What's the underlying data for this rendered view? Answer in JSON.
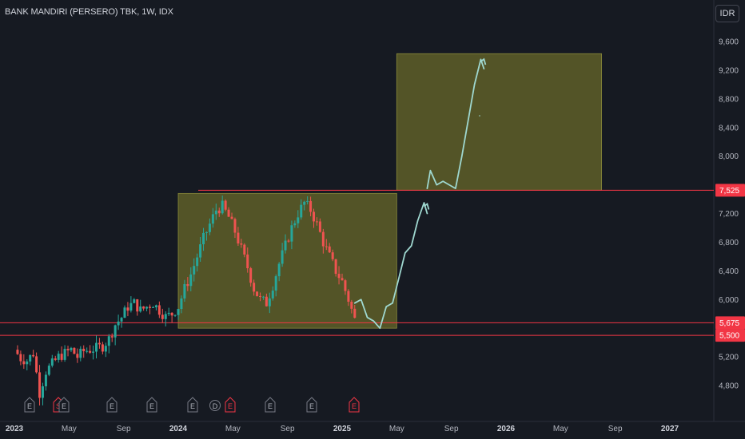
{
  "header": {
    "symbol_title": "BANK MANDIRI (PERSERO) TBK, 1W, IDX",
    "currency_label": "IDR"
  },
  "colors": {
    "background": "#161a22",
    "up_candle": "#26a69a",
    "down_candle": "#ef5350",
    "zone_fill": "#6b6b2a",
    "level_line": "#f23645",
    "projection_line": "#9fd8d0",
    "axis_text": "#b2b5be"
  },
  "chart_data": {
    "type": "candlestick",
    "y_axis": {
      "ticks": [
        9600,
        9200,
        8800,
        8400,
        8000,
        7200,
        6800,
        6400,
        6000,
        5200,
        4800
      ],
      "tick_labels": [
        "9,600",
        "9,200",
        "8,800",
        "8,400",
        "8,000",
        "7,200",
        "6,800",
        "6,400",
        "6,000",
        "5,200",
        "4,800"
      ],
      "range": [
        4650,
        9900
      ]
    },
    "x_axis": {
      "labels": [
        "2023",
        "May",
        "Sep",
        "2024",
        "May",
        "Sep",
        "2025",
        "May",
        "Sep",
        "2026",
        "May",
        "Sep",
        "2027"
      ],
      "bold": [
        true,
        false,
        false,
        true,
        false,
        false,
        true,
        false,
        false,
        true,
        false,
        false,
        true
      ],
      "dates": [
        "2023-01",
        "2023-05",
        "2023-09",
        "2024-01",
        "2024-05",
        "2024-09",
        "2025-01",
        "2025-05",
        "2025-09",
        "2026-01",
        "2026-05",
        "2026-09",
        "2027-01"
      ]
    },
    "levels": [
      {
        "label": "7,525",
        "value": 7525
      },
      {
        "label": "5,675",
        "value": 5675
      },
      {
        "label": "5,500",
        "value": 5500
      }
    ],
    "zones": [
      {
        "from_date": "2024-01",
        "to_date": "2025-05",
        "top": 7480,
        "bottom": 5600
      },
      {
        "from_date": "2025-05",
        "to_date": "2026-08",
        "top": 9430,
        "bottom": 7525
      }
    ],
    "weekly_close_path": [
      [
        0,
        5300
      ],
      [
        2,
        5180
      ],
      [
        4,
        5150
      ],
      [
        6,
        5250
      ],
      [
        8,
        4700
      ],
      [
        10,
        5000
      ],
      [
        12,
        5100
      ],
      [
        14,
        5200
      ],
      [
        16,
        5250
      ],
      [
        18,
        5300
      ],
      [
        20,
        5200
      ],
      [
        22,
        5280
      ],
      [
        24,
        5300
      ],
      [
        26,
        5320
      ],
      [
        28,
        5350
      ],
      [
        30,
        5450
      ],
      [
        32,
        5650
      ],
      [
        34,
        5750
      ],
      [
        36,
        5900
      ],
      [
        38,
        5950
      ],
      [
        40,
        5850
      ],
      [
        42,
        5900
      ],
      [
        44,
        5950
      ],
      [
        46,
        5850
      ],
      [
        48,
        5760
      ],
      [
        50,
        5800
      ],
      [
        52,
        5900
      ],
      [
        54,
        6150
      ],
      [
        56,
        6350
      ],
      [
        58,
        6600
      ],
      [
        60,
        6850
      ],
      [
        62,
        7050
      ],
      [
        64,
        7250
      ],
      [
        66,
        7300
      ],
      [
        68,
        7150
      ],
      [
        70,
        6950
      ],
      [
        72,
        6700
      ],
      [
        74,
        6450
      ],
      [
        76,
        6150
      ],
      [
        78,
        6000
      ],
      [
        80,
        5950
      ],
      [
        82,
        6200
      ],
      [
        84,
        6500
      ],
      [
        86,
        6750
      ],
      [
        88,
        7000
      ],
      [
        90,
        7200
      ],
      [
        92,
        7350
      ],
      [
        94,
        7250
      ],
      [
        96,
        7050
      ],
      [
        98,
        6800
      ],
      [
        100,
        6600
      ],
      [
        102,
        6400
      ],
      [
        104,
        6250
      ],
      [
        106,
        6000
      ],
      [
        108,
        5720
      ]
    ],
    "projection_1": [
      [
        108,
        5950
      ],
      [
        110,
        6000
      ],
      [
        112,
        5750
      ],
      [
        114,
        5700
      ],
      [
        116,
        5600
      ],
      [
        118,
        5900
      ],
      [
        120,
        5950
      ],
      [
        122,
        6300
      ],
      [
        124,
        6650
      ],
      [
        126,
        6750
      ],
      [
        128,
        7100
      ],
      [
        130,
        7350
      ],
      [
        131,
        7200
      ]
    ],
    "projection_2": [
      [
        131,
        7550
      ],
      [
        132,
        7800
      ],
      [
        134,
        7600
      ],
      [
        136,
        7650
      ],
      [
        138,
        7600
      ],
      [
        140,
        7550
      ],
      [
        142,
        8000
      ],
      [
        146,
        9000
      ],
      [
        148,
        9350
      ],
      [
        149,
        9220
      ]
    ],
    "events": [
      {
        "symbol": "E",
        "type": "earnings"
      },
      {
        "symbol": "S",
        "type": "split"
      },
      {
        "symbol": "E",
        "type": "earnings"
      },
      {
        "symbol": "E",
        "type": "earnings"
      },
      {
        "symbol": "E",
        "type": "earnings"
      },
      {
        "symbol": "E",
        "type": "earnings"
      },
      {
        "symbol": "D",
        "type": "dividend"
      },
      {
        "symbol": "E",
        "type": "earnings"
      },
      {
        "symbol": "E",
        "type": "earnings"
      },
      {
        "symbol": "E",
        "type": "earnings"
      },
      {
        "symbol": "E",
        "type": "earnings"
      },
      {
        "symbol": "E",
        "type": "earnings"
      }
    ]
  }
}
